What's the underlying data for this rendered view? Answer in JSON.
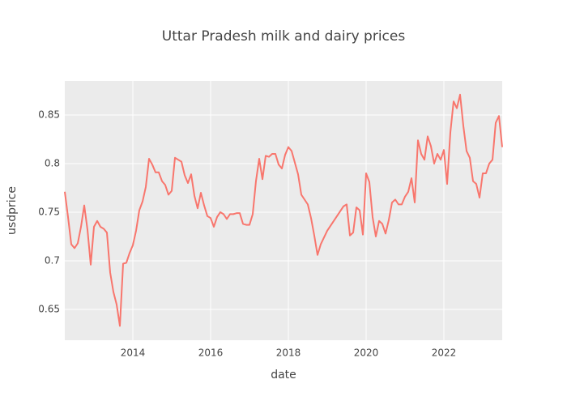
{
  "chart_data": {
    "type": "line",
    "title": "Uttar Pradesh milk and dairy prices",
    "xlabel": "date",
    "ylabel": "usdprice",
    "color": "#F8766D",
    "grid": true,
    "x": [
      "2012-04",
      "2012-05",
      "2012-06",
      "2012-07",
      "2012-08",
      "2012-09",
      "2012-10",
      "2012-11",
      "2012-12",
      "2013-01",
      "2013-02",
      "2013-03",
      "2013-04",
      "2013-05",
      "2013-06",
      "2013-07",
      "2013-08",
      "2013-09",
      "2013-10",
      "2013-11",
      "2013-12",
      "2014-01",
      "2014-02",
      "2014-03",
      "2014-04",
      "2014-05",
      "2014-06",
      "2014-07",
      "2014-08",
      "2014-09",
      "2014-10",
      "2014-11",
      "2014-12",
      "2015-01",
      "2015-02",
      "2015-03",
      "2015-04",
      "2015-05",
      "2015-06",
      "2015-07",
      "2015-08",
      "2015-09",
      "2015-10",
      "2015-11",
      "2015-12",
      "2016-01",
      "2016-02",
      "2016-03",
      "2016-04",
      "2016-05",
      "2016-06",
      "2016-07",
      "2016-08",
      "2016-09",
      "2016-10",
      "2016-11",
      "2016-12",
      "2017-01",
      "2017-02",
      "2017-03",
      "2017-04",
      "2017-05",
      "2017-06",
      "2017-07",
      "2017-08",
      "2017-09",
      "2017-10",
      "2017-11",
      "2017-12",
      "2018-01",
      "2018-02",
      "2018-03",
      "2018-04",
      "2018-05",
      "2018-06",
      "2018-07",
      "2018-08",
      "2018-09",
      "2018-10",
      "2018-11",
      "2018-12",
      "2019-01",
      "2019-02",
      "2019-03",
      "2019-04",
      "2019-05",
      "2019-06",
      "2019-07",
      "2019-08",
      "2019-09",
      "2019-10",
      "2019-11",
      "2019-12",
      "2020-01",
      "2020-02",
      "2020-03",
      "2020-04",
      "2020-05",
      "2020-06",
      "2020-07",
      "2020-08",
      "2020-09",
      "2020-10",
      "2020-11",
      "2020-12",
      "2021-01",
      "2021-02",
      "2021-03",
      "2021-04",
      "2021-05",
      "2021-06",
      "2021-07",
      "2021-08",
      "2021-09",
      "2021-10",
      "2021-11",
      "2021-12",
      "2022-01",
      "2022-02",
      "2022-03",
      "2022-04",
      "2022-05",
      "2022-06",
      "2022-07",
      "2022-08",
      "2022-09",
      "2022-10",
      "2022-11",
      "2022-12",
      "2023-01",
      "2023-02",
      "2023-03",
      "2023-04",
      "2023-05",
      "2023-06",
      "2023-07"
    ],
    "values": [
      0.771,
      0.745,
      0.717,
      0.713,
      0.718,
      0.735,
      0.757,
      0.732,
      0.696,
      0.735,
      0.741,
      0.735,
      0.733,
      0.729,
      0.688,
      0.668,
      0.655,
      0.633,
      0.697,
      0.698,
      0.708,
      0.716,
      0.731,
      0.752,
      0.761,
      0.776,
      0.805,
      0.799,
      0.791,
      0.791,
      0.782,
      0.778,
      0.768,
      0.772,
      0.806,
      0.804,
      0.802,
      0.788,
      0.78,
      0.789,
      0.767,
      0.754,
      0.77,
      0.757,
      0.746,
      0.744,
      0.735,
      0.745,
      0.75,
      0.748,
      0.743,
      0.748,
      0.748,
      0.749,
      0.749,
      0.738,
      0.737,
      0.737,
      0.748,
      0.782,
      0.805,
      0.784,
      0.808,
      0.807,
      0.81,
      0.81,
      0.799,
      0.795,
      0.809,
      0.817,
      0.813,
      0.801,
      0.789,
      0.768,
      0.763,
      0.758,
      0.744,
      0.726,
      0.706,
      0.717,
      0.724,
      0.731,
      0.736,
      0.741,
      0.746,
      0.751,
      0.756,
      0.758,
      0.726,
      0.729,
      0.755,
      0.752,
      0.727,
      0.79,
      0.781,
      0.745,
      0.725,
      0.741,
      0.738,
      0.728,
      0.742,
      0.76,
      0.763,
      0.758,
      0.758,
      0.766,
      0.771,
      0.785,
      0.76,
      0.824,
      0.81,
      0.804,
      0.828,
      0.818,
      0.8,
      0.81,
      0.804,
      0.814,
      0.779,
      0.832,
      0.864,
      0.857,
      0.871,
      0.839,
      0.813,
      0.806,
      0.782,
      0.779,
      0.765,
      0.79,
      0.79,
      0.8,
      0.804,
      0.842,
      0.849,
      0.817
    ],
    "xlim": [
      "2012-04",
      "2023-07"
    ],
    "xticks": [
      {
        "value": "2014-01",
        "label": "2014"
      },
      {
        "value": "2016-01",
        "label": "2016"
      },
      {
        "value": "2018-01",
        "label": "2018"
      },
      {
        "value": "2020-01",
        "label": "2020"
      },
      {
        "value": "2022-01",
        "label": "2022"
      }
    ],
    "ylim": [
      0.6183,
      0.885
    ],
    "yticks": [
      0.65,
      0.7,
      0.75,
      0.8,
      0.85
    ]
  }
}
